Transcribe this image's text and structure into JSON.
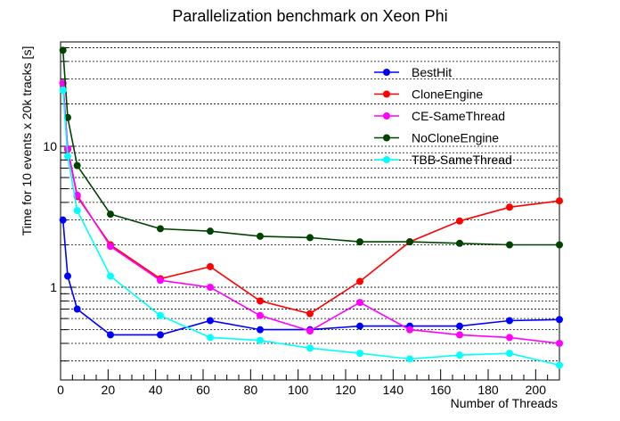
{
  "chart_data": {
    "type": "line",
    "title": "Parallelization benchmark on Xeon Phi",
    "xlabel": "Number of Threads",
    "ylabel": "Time for 10 events x 20k tracks [s]",
    "xlim": [
      0,
      210
    ],
    "ylim": [
      0.22,
      55
    ],
    "yscale": "log",
    "grid": "horizontal",
    "legend_position": "top-right",
    "x_ticks": [
      0,
      20,
      40,
      60,
      80,
      100,
      120,
      140,
      160,
      180,
      200
    ],
    "y_tick_labels": [
      {
        "value": 1,
        "label": "1"
      },
      {
        "value": 10,
        "label": "10"
      }
    ],
    "series": [
      {
        "name": "BestHit",
        "color": "#0000ff",
        "x": [
          1,
          3,
          7,
          21,
          42,
          63,
          84,
          105,
          126,
          147,
          168,
          189,
          210
        ],
        "y": [
          3.0,
          1.2,
          0.7,
          0.46,
          0.46,
          0.58,
          0.5,
          0.5,
          0.53,
          0.53,
          0.53,
          0.58,
          0.59
        ]
      },
      {
        "name": "CloneEngine",
        "color": "#ff0000",
        "x": [
          1,
          3,
          7,
          21,
          42,
          63,
          84,
          105,
          126,
          147,
          168,
          189,
          210
        ],
        "y": [
          28,
          9.5,
          4.4,
          2.0,
          1.15,
          1.4,
          0.8,
          0.65,
          1.1,
          2.1,
          2.95,
          3.7,
          4.1
        ]
      },
      {
        "name": "CE-SameThread",
        "color": "#ff00ff",
        "x": [
          1,
          3,
          7,
          21,
          42,
          63,
          84,
          105,
          126,
          147,
          168,
          189,
          210
        ],
        "y": [
          28,
          9.6,
          4.5,
          1.95,
          1.12,
          1.0,
          0.63,
          0.49,
          0.78,
          0.5,
          0.46,
          0.44,
          0.4
        ]
      },
      {
        "name": "NoCloneEngine",
        "color": "#004400",
        "x": [
          1,
          3,
          7,
          21,
          42,
          63,
          84,
          105,
          126,
          147,
          168,
          189,
          210
        ],
        "y": [
          48,
          16,
          7.3,
          3.3,
          2.6,
          2.5,
          2.3,
          2.25,
          2.1,
          2.1,
          2.05,
          2.0,
          2.0
        ]
      },
      {
        "name": "TBB-SameThread",
        "color": "#00ffff",
        "x": [
          1,
          3,
          7,
          21,
          42,
          63,
          84,
          105,
          126,
          147,
          168,
          189,
          210
        ],
        "y": [
          25,
          8.5,
          3.5,
          1.2,
          0.63,
          0.44,
          0.42,
          0.37,
          0.34,
          0.31,
          0.33,
          0.34,
          0.28
        ]
      }
    ]
  }
}
